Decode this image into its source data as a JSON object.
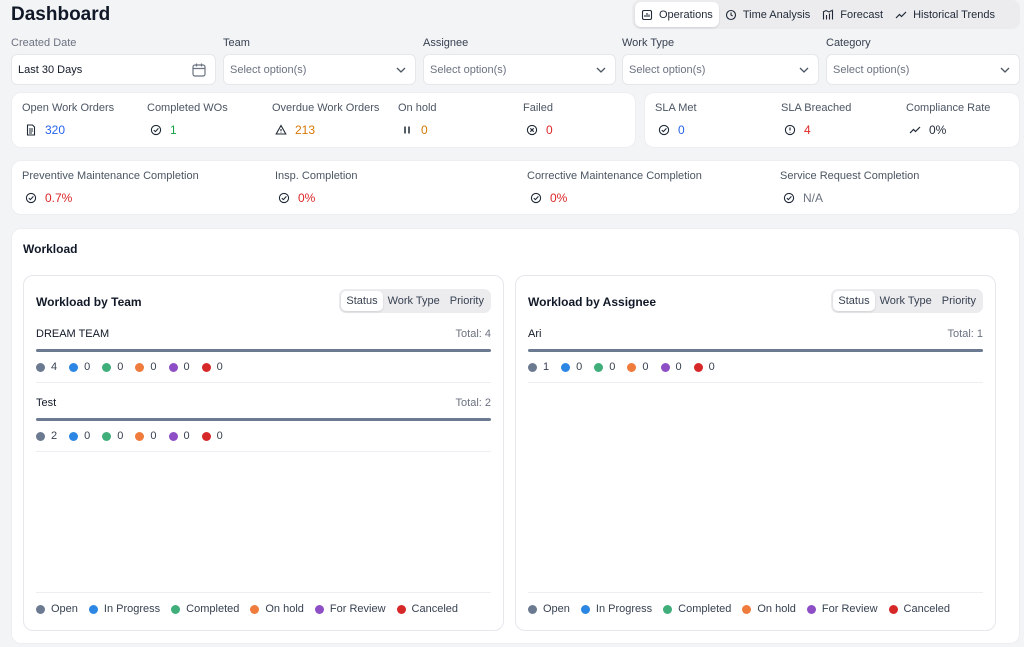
{
  "header": {
    "title": "Dashboard"
  },
  "view_tabs": [
    {
      "label": "Operations",
      "icon": "report-icon",
      "active": true
    },
    {
      "label": "Time Analysis",
      "icon": "clock-icon",
      "active": false
    },
    {
      "label": "Forecast",
      "icon": "forecast-icon",
      "active": false
    },
    {
      "label": "Historical Trends",
      "icon": "trend-icon",
      "active": false
    }
  ],
  "filters": {
    "created_date": {
      "label": "Created Date",
      "value": "Last 30 Days"
    },
    "team": {
      "label": "Team",
      "placeholder": "Select option(s)"
    },
    "assignee": {
      "label": "Assignee",
      "placeholder": "Select option(s)"
    },
    "work_type": {
      "label": "Work Type",
      "placeholder": "Select option(s)"
    },
    "category": {
      "label": "Category",
      "placeholder": "Select option(s)"
    }
  },
  "kpis_main": [
    {
      "label": "Open Work Orders",
      "value": "320",
      "icon": "document-icon"
    },
    {
      "label": "Completed WOs",
      "value": "1",
      "icon": "check-circle-icon"
    },
    {
      "label": "Overdue Work Orders",
      "value": "213",
      "icon": "warning-icon"
    },
    {
      "label": "On hold",
      "value": "0",
      "icon": "pause-icon"
    },
    {
      "label": "Failed",
      "value": "0",
      "icon": "x-circle-icon"
    }
  ],
  "kpis_sla": [
    {
      "label": "SLA Met",
      "value": "0",
      "icon": "check-circle-icon"
    },
    {
      "label": "SLA Breached",
      "value": "4",
      "icon": "alert-circle-icon"
    },
    {
      "label": "Compliance Rate",
      "value": "0%",
      "icon": "trend-icon"
    }
  ],
  "kpis_completion": [
    {
      "label": "Preventive Maintenance Completion",
      "value": "0.7%",
      "icon": "check-circle-icon"
    },
    {
      "label": "Insp. Completion",
      "value": "0%",
      "icon": "check-circle-icon"
    },
    {
      "label": "Corrective Maintenance Completion",
      "value": "0%",
      "icon": "check-circle-icon"
    },
    {
      "label": "Service Request Completion",
      "value": "N/A",
      "icon": "check-circle-icon"
    }
  ],
  "workload": {
    "title": "Workload",
    "segments": [
      "Status",
      "Work Type",
      "Priority"
    ],
    "status_colors": {
      "open": "#6b7a90",
      "in_progress": "#2b87e3",
      "completed": "#3fae7a",
      "on_hold": "#ef7b3c",
      "for_review": "#8e4ec6",
      "canceled": "#d62828"
    },
    "legend": [
      "Open",
      "In Progress",
      "Completed",
      "On hold",
      "For Review",
      "Canceled"
    ],
    "by_team": {
      "title": "Workload by Team",
      "rows": [
        {
          "name": "DREAM TEAM",
          "total": "Total: 4",
          "counts": [
            "4",
            "0",
            "0",
            "0",
            "0",
            "0"
          ]
        },
        {
          "name": "Test",
          "total": "Total: 2",
          "counts": [
            "2",
            "0",
            "0",
            "0",
            "0",
            "0"
          ]
        }
      ]
    },
    "by_assignee": {
      "title": "Workload by Assignee",
      "rows": [
        {
          "name": "Ari",
          "total": "Total: 1",
          "counts": [
            "1",
            "0",
            "0",
            "0",
            "0",
            "0"
          ]
        }
      ]
    }
  }
}
